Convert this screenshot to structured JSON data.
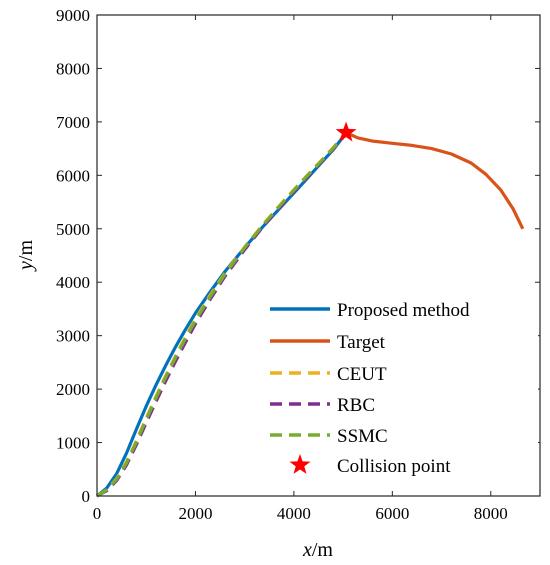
{
  "chart_data": {
    "type": "line",
    "title": "",
    "xlabel": {
      "var": "x",
      "unit": "/m"
    },
    "ylabel": {
      "var": "y",
      "unit": "/m"
    },
    "xlim": [
      0,
      9000
    ],
    "ylim": [
      0,
      9000
    ],
    "xticks": [
      0,
      2000,
      4000,
      6000,
      8000
    ],
    "yticks": [
      0,
      1000,
      2000,
      3000,
      4000,
      5000,
      6000,
      7000,
      8000,
      9000
    ],
    "grid": false,
    "legend_position": "bottom-right",
    "series": [
      {
        "name": "Proposed method",
        "color": "#0072BD",
        "style": "solid",
        "points": [
          [
            0,
            0
          ],
          [
            200,
            150
          ],
          [
            400,
            420
          ],
          [
            600,
            800
          ],
          [
            800,
            1250
          ],
          [
            1000,
            1680
          ],
          [
            1200,
            2080
          ],
          [
            1400,
            2450
          ],
          [
            1600,
            2800
          ],
          [
            1800,
            3120
          ],
          [
            2000,
            3420
          ],
          [
            2300,
            3820
          ],
          [
            2600,
            4200
          ],
          [
            3000,
            4650
          ],
          [
            3400,
            5070
          ],
          [
            3800,
            5470
          ],
          [
            4200,
            5870
          ],
          [
            4600,
            6280
          ],
          [
            4800,
            6480
          ],
          [
            5000,
            6720
          ],
          [
            5060,
            6800
          ]
        ]
      },
      {
        "name": "Target",
        "color": "#D95319",
        "style": "solid",
        "points": [
          [
            5060,
            6800
          ],
          [
            5300,
            6700
          ],
          [
            5600,
            6640
          ],
          [
            6000,
            6600
          ],
          [
            6400,
            6560
          ],
          [
            6800,
            6500
          ],
          [
            7200,
            6400
          ],
          [
            7600,
            6230
          ],
          [
            7900,
            6020
          ],
          [
            8200,
            5730
          ],
          [
            8450,
            5380
          ],
          [
            8650,
            5000
          ]
        ]
      },
      {
        "name": "CEUT",
        "color": "#EDB120",
        "style": "dashed",
        "points": [
          [
            0,
            0
          ],
          [
            200,
            120
          ],
          [
            400,
            330
          ],
          [
            600,
            640
          ],
          [
            800,
            1040
          ],
          [
            1000,
            1460
          ],
          [
            1200,
            1870
          ],
          [
            1400,
            2260
          ],
          [
            1600,
            2630
          ],
          [
            1800,
            2980
          ],
          [
            2000,
            3310
          ],
          [
            2300,
            3760
          ],
          [
            2600,
            4170
          ],
          [
            3000,
            4660
          ],
          [
            3400,
            5110
          ],
          [
            3800,
            5530
          ],
          [
            4200,
            5930
          ],
          [
            4600,
            6320
          ],
          [
            4800,
            6520
          ],
          [
            5000,
            6730
          ],
          [
            5060,
            6800
          ]
        ]
      },
      {
        "name": "RBC",
        "color": "#7E2F8E",
        "style": "dashed",
        "points": [
          [
            0,
            0
          ],
          [
            200,
            100
          ],
          [
            400,
            290
          ],
          [
            600,
            580
          ],
          [
            800,
            960
          ],
          [
            1000,
            1370
          ],
          [
            1200,
            1770
          ],
          [
            1400,
            2160
          ],
          [
            1600,
            2530
          ],
          [
            1800,
            2880
          ],
          [
            2000,
            3220
          ],
          [
            2300,
            3680
          ],
          [
            2600,
            4110
          ],
          [
            3000,
            4610
          ],
          [
            3400,
            5070
          ],
          [
            3800,
            5490
          ],
          [
            4200,
            5900
          ],
          [
            4600,
            6290
          ],
          [
            4800,
            6490
          ],
          [
            5000,
            6710
          ],
          [
            5060,
            6800
          ]
        ]
      },
      {
        "name": "SSMC",
        "color": "#77AC30",
        "style": "dashed",
        "points": [
          [
            0,
            0
          ],
          [
            200,
            115
          ],
          [
            400,
            315
          ],
          [
            600,
            615
          ],
          [
            800,
            1010
          ],
          [
            1000,
            1430
          ],
          [
            1200,
            1840
          ],
          [
            1400,
            2230
          ],
          [
            1600,
            2600
          ],
          [
            1800,
            2950
          ],
          [
            2000,
            3280
          ],
          [
            2300,
            3730
          ],
          [
            2600,
            4150
          ],
          [
            3000,
            4650
          ],
          [
            3400,
            5100
          ],
          [
            3800,
            5520
          ],
          [
            4200,
            5920
          ],
          [
            4600,
            6310
          ],
          [
            4800,
            6510
          ],
          [
            5000,
            6720
          ],
          [
            5060,
            6800
          ]
        ]
      }
    ],
    "markers": [
      {
        "name": "Collision point",
        "color": "#FF0000",
        "symbol": "star",
        "x": 5060,
        "y": 6800
      }
    ]
  }
}
